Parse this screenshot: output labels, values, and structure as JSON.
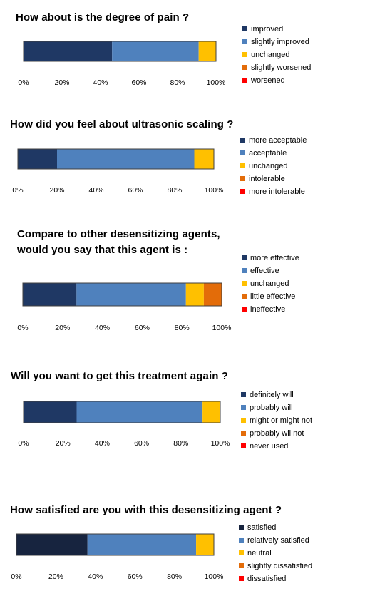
{
  "chart_data": [
    {
      "type": "bar",
      "orientation": "horizontal",
      "stacked": true,
      "title": "How about is the degree of pain ?",
      "categories": [
        ""
      ],
      "xlim": [
        0,
        100
      ],
      "ticks": [
        "0%",
        "20%",
        "40%",
        "60%",
        "80%",
        "100%"
      ],
      "legend_position": "right",
      "series": [
        {
          "name": "improved",
          "values": [
            46
          ],
          "color": "#1f3864"
        },
        {
          "name": "slightly improved",
          "values": [
            45
          ],
          "color": "#4f81bd"
        },
        {
          "name": "unchanged",
          "values": [
            9
          ],
          "color": "#ffc000"
        },
        {
          "name": "slightly worsened",
          "values": [
            0
          ],
          "color": "#e36c09"
        },
        {
          "name": "worsened",
          "values": [
            0
          ],
          "color": "#ff0000"
        }
      ]
    },
    {
      "type": "bar",
      "orientation": "horizontal",
      "stacked": true,
      "title": "How did you feel about ultrasonic scaling ?",
      "categories": [
        ""
      ],
      "xlim": [
        0,
        100
      ],
      "ticks": [
        "0%",
        "20%",
        "40%",
        "60%",
        "80%",
        "100%"
      ],
      "legend_position": "right",
      "series": [
        {
          "name": "more acceptable",
          "values": [
            20
          ],
          "color": "#1f3864"
        },
        {
          "name": "acceptable",
          "values": [
            70
          ],
          "color": "#4f81bd"
        },
        {
          "name": "unchanged",
          "values": [
            10
          ],
          "color": "#ffc000"
        },
        {
          "name": "intolerable",
          "values": [
            0
          ],
          "color": "#e36c09"
        },
        {
          "name": "more intolerable",
          "values": [
            0
          ],
          "color": "#ff0000"
        }
      ]
    },
    {
      "type": "bar",
      "orientation": "horizontal",
      "stacked": true,
      "title": [
        "Compare to other desensitizing agents,",
        "would you say that this agent is :"
      ],
      "categories": [
        ""
      ],
      "xlim": [
        0,
        100
      ],
      "ticks": [
        "0%",
        "20%",
        "40%",
        "60%",
        "80%",
        "100%"
      ],
      "legend_position": "right",
      "series": [
        {
          "name": "more effective",
          "values": [
            27
          ],
          "color": "#1f3864"
        },
        {
          "name": "effective",
          "values": [
            55
          ],
          "color": "#4f81bd"
        },
        {
          "name": "unchanged",
          "values": [
            9
          ],
          "color": "#ffc000"
        },
        {
          "name": "little effective",
          "values": [
            9
          ],
          "color": "#e36c09"
        },
        {
          "name": "ineffective",
          "values": [
            0
          ],
          "color": "#ff0000"
        }
      ]
    },
    {
      "type": "bar",
      "orientation": "horizontal",
      "stacked": true,
      "title": "Will you want to get this treatment again ?",
      "categories": [
        ""
      ],
      "xlim": [
        0,
        100
      ],
      "ticks": [
        "0%",
        "20%",
        "40%",
        "60%",
        "80%",
        "100%"
      ],
      "legend_position": "right",
      "series": [
        {
          "name": "definitely will",
          "values": [
            27
          ],
          "color": "#1f3864"
        },
        {
          "name": "probably will",
          "values": [
            64
          ],
          "color": "#4f81bd"
        },
        {
          "name": "might or might  not",
          "values": [
            9
          ],
          "color": "#ffc000"
        },
        {
          "name": "probably wil not",
          "values": [
            0
          ],
          "color": "#e36c09"
        },
        {
          "name": "never used",
          "values": [
            0
          ],
          "color": "#ff0000"
        }
      ]
    },
    {
      "type": "bar",
      "orientation": "horizontal",
      "stacked": true,
      "title": "How satisfied are you with this desensitizing agent ?",
      "categories": [
        ""
      ],
      "xlim": [
        0,
        100
      ],
      "ticks": [
        "0%",
        "20%",
        "40%",
        "60%",
        "80%",
        "100%"
      ],
      "legend_position": "right",
      "series": [
        {
          "name": "satisfied",
          "values": [
            36
          ],
          "color": "#17243f"
        },
        {
          "name": "relatively satisfied",
          "values": [
            55
          ],
          "color": "#4f81bd"
        },
        {
          "name": "neutral",
          "values": [
            9
          ],
          "color": "#ffc000"
        },
        {
          "name": "slightly dissatisfied",
          "values": [
            0
          ],
          "color": "#e36c09"
        },
        {
          "name": "dissatisfied",
          "values": [
            0
          ],
          "color": "#ff0000"
        }
      ]
    }
  ]
}
